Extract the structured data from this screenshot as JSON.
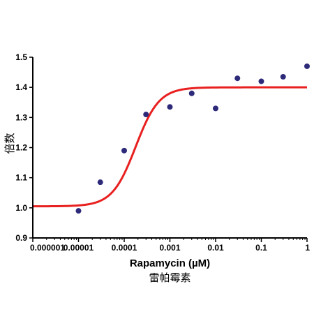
{
  "chart_data": {
    "type": "scatter",
    "x_scale": "log",
    "xlim": [
      1e-06,
      1
    ],
    "ylim": [
      0.9,
      1.5
    ],
    "x_ticks": [
      {
        "value": 1e-06,
        "label": "0.000001"
      },
      {
        "value": 1e-05,
        "label": "0.00001"
      },
      {
        "value": 0.0001,
        "label": "0.0001"
      },
      {
        "value": 0.001,
        "label": "0.001"
      },
      {
        "value": 0.01,
        "label": "0.01"
      },
      {
        "value": 0.1,
        "label": "0.1"
      },
      {
        "value": 1,
        "label": "1"
      }
    ],
    "y_ticks": [
      {
        "value": 0.9,
        "label": "0.9"
      },
      {
        "value": 1.0,
        "label": "1.0"
      },
      {
        "value": 1.1,
        "label": "1.1"
      },
      {
        "value": 1.2,
        "label": "1.2"
      },
      {
        "value": 1.3,
        "label": "1.3"
      },
      {
        "value": 1.4,
        "label": "1.4"
      },
      {
        "value": 1.5,
        "label": "1.5"
      }
    ],
    "xlabel": "Rapamycin (µM)",
    "xlabel_secondary": "雷帕霉素",
    "ylabel": "倍数",
    "grid": false,
    "points": {
      "x": [
        1e-05,
        3e-05,
        0.0001,
        0.0003,
        0.001,
        0.003,
        0.01,
        0.03,
        0.1,
        0.3,
        1
      ],
      "y": [
        0.99,
        1.085,
        1.19,
        1.31,
        1.335,
        1.38,
        1.33,
        1.43,
        1.42,
        1.435,
        1.47
      ],
      "color": "#2e2a7a"
    },
    "fit_curve": {
      "bottom": 1.005,
      "top": 1.4,
      "log_ec50": -3.75,
      "hill": 1.7,
      "color": "#e8201f"
    }
  }
}
